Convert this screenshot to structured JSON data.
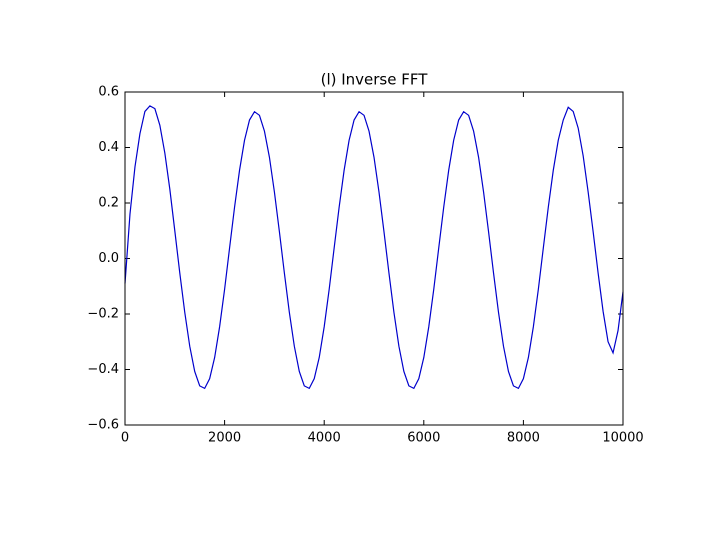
{
  "chart_data": {
    "type": "line",
    "title": "(l) Inverse FFT",
    "x": [
      0,
      100,
      200,
      300,
      400,
      500,
      600,
      700,
      800,
      900,
      1000,
      1100,
      1200,
      1300,
      1400,
      1500,
      1600,
      1700,
      1800,
      1900,
      2000,
      2100,
      2200,
      2300,
      2400,
      2500,
      2600,
      2700,
      2800,
      2900,
      3000,
      3100,
      3200,
      3300,
      3400,
      3500,
      3600,
      3700,
      3800,
      3900,
      4000,
      4100,
      4200,
      4300,
      4400,
      4500,
      4600,
      4700,
      4800,
      4900,
      5000,
      5100,
      5200,
      5300,
      5400,
      5500,
      5600,
      5700,
      5800,
      5900,
      6000,
      6100,
      6200,
      6300,
      6400,
      6500,
      6600,
      6700,
      6800,
      6900,
      7000,
      7100,
      7200,
      7300,
      7400,
      7500,
      7600,
      7700,
      7800,
      7900,
      8000,
      8100,
      8200,
      8300,
      8400,
      8500,
      8600,
      8700,
      8800,
      8900,
      9000,
      9100,
      9200,
      9300,
      9400,
      9500,
      9600,
      9700,
      9800,
      9900,
      10000
    ],
    "series": [
      {
        "color": "#0000cc",
        "values": [
          -0.09,
          0.16,
          0.33,
          0.45,
          0.53,
          0.55,
          0.54,
          0.48,
          0.38,
          0.25,
          0.1,
          -0.052,
          -0.194,
          -0.316,
          -0.407,
          -0.459,
          -0.468,
          -0.433,
          -0.357,
          -0.246,
          -0.111,
          0.038,
          0.185,
          0.318,
          0.426,
          0.499,
          0.529,
          0.516,
          0.459,
          0.365,
          0.24,
          0.097,
          -0.052,
          -0.194,
          -0.316,
          -0.407,
          -0.459,
          -0.468,
          -0.433,
          -0.357,
          -0.246,
          -0.111,
          0.038,
          0.185,
          0.318,
          0.426,
          0.499,
          0.529,
          0.516,
          0.459,
          0.365,
          0.24,
          0.097,
          -0.052,
          -0.194,
          -0.316,
          -0.407,
          -0.459,
          -0.468,
          -0.433,
          -0.357,
          -0.246,
          -0.111,
          0.038,
          0.185,
          0.318,
          0.426,
          0.499,
          0.529,
          0.516,
          0.459,
          0.365,
          0.24,
          0.097,
          -0.052,
          -0.194,
          -0.316,
          -0.407,
          -0.459,
          -0.468,
          -0.433,
          -0.357,
          -0.246,
          -0.111,
          0.038,
          0.185,
          0.318,
          0.426,
          0.499,
          0.545,
          0.53,
          0.47,
          0.37,
          0.24,
          0.097,
          -0.052,
          -0.19,
          -0.3,
          -0.34,
          -0.26,
          -0.12
        ]
      }
    ],
    "xlim": [
      0,
      10000
    ],
    "xticks": [
      0,
      2000,
      4000,
      6000,
      8000,
      10000
    ],
    "ylim": [
      -0.6,
      0.6
    ],
    "yticks": [
      {
        "value": -0.6,
        "label": "−0.6"
      },
      {
        "value": -0.4,
        "label": "−0.4"
      },
      {
        "value": -0.2,
        "label": "−0.2"
      },
      {
        "value": 0,
        "label": "0.0"
      },
      {
        "value": 0.2,
        "label": "0.2"
      },
      {
        "value": 0.4,
        "label": "0.4"
      },
      {
        "value": 0.6,
        "label": "0.6"
      }
    ],
    "grid": false
  }
}
